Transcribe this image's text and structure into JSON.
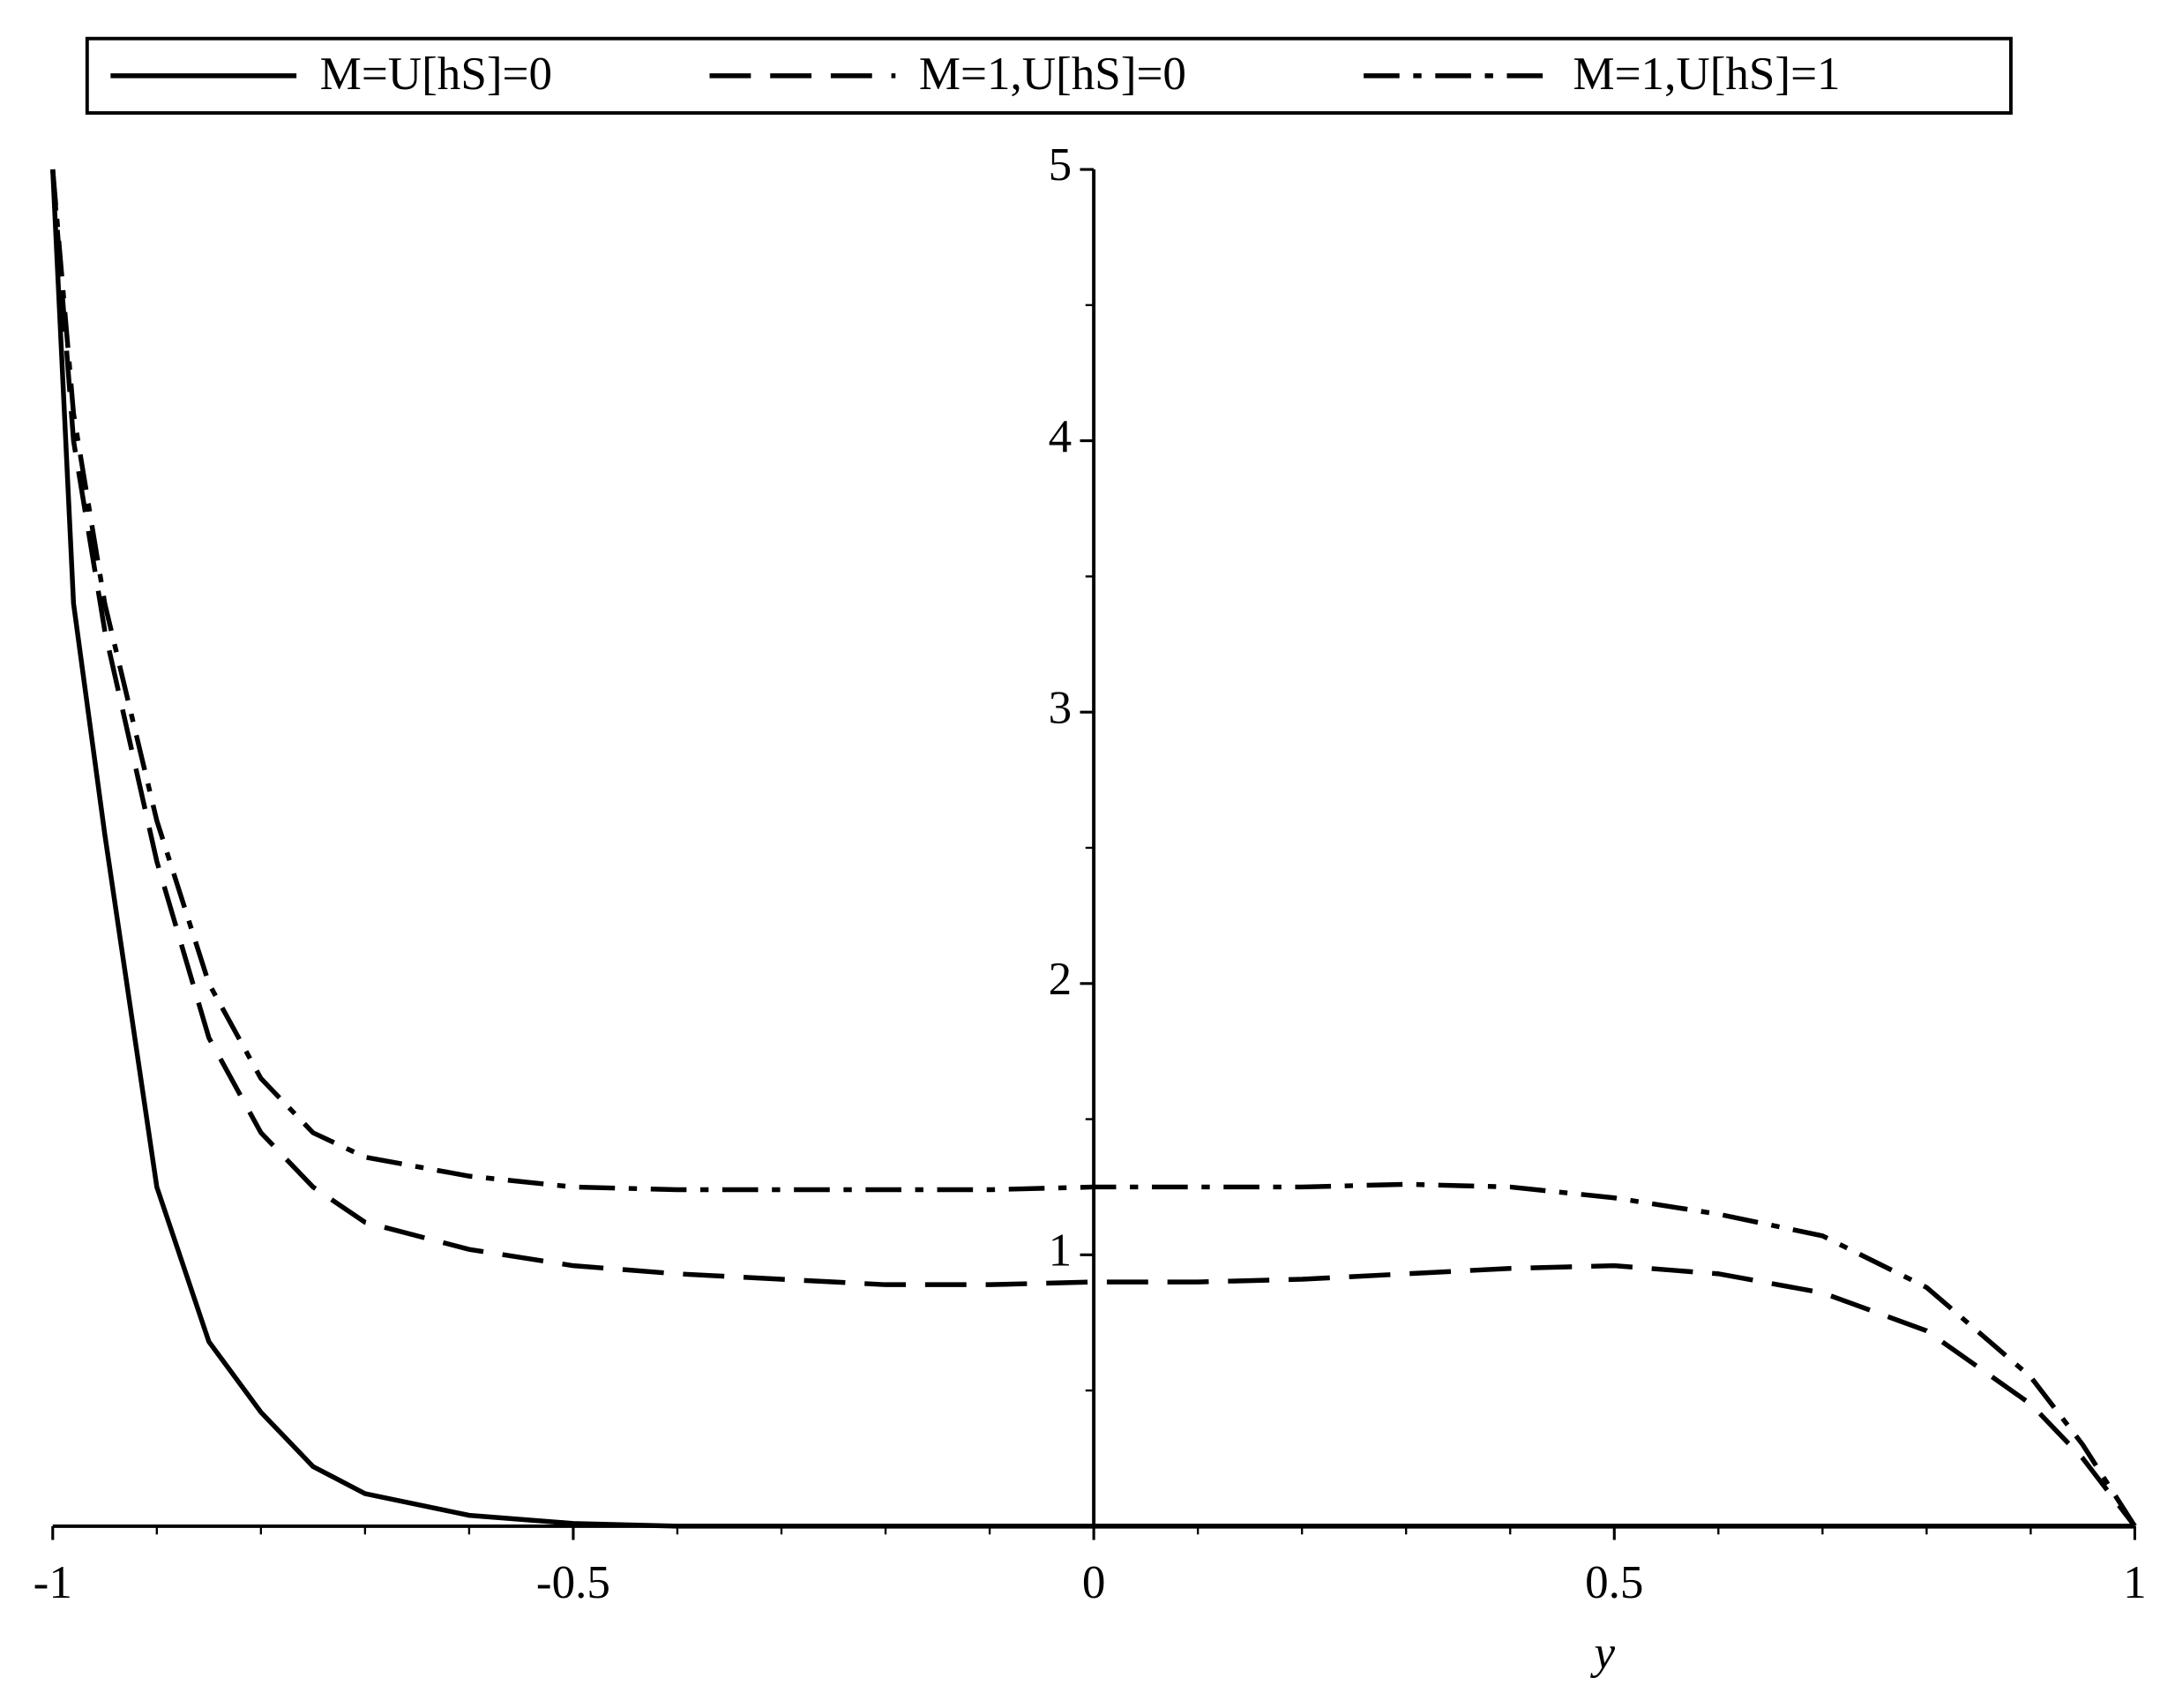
{
  "chart_data": {
    "type": "line",
    "x_label": "y",
    "x": [
      -1,
      -0.98,
      -0.95,
      -0.9,
      -0.85,
      -0.8,
      -0.75,
      -0.7,
      -0.6,
      -0.5,
      -0.4,
      -0.3,
      -0.2,
      -0.1,
      0,
      0.1,
      0.2,
      0.3,
      0.4,
      0.5,
      0.6,
      0.7,
      0.8,
      0.9,
      0.95,
      1
    ],
    "series": [
      {
        "name": "M=U[hS]=0",
        "color": "#000000",
        "dash": "solid",
        "values": [
          5,
          3.4,
          2.55,
          1.25,
          0.68,
          0.42,
          0.22,
          0.12,
          0.04,
          0.01,
          0,
          0,
          0,
          0,
          0,
          0,
          0,
          0,
          0,
          0,
          0,
          0,
          0,
          0,
          0,
          0
        ]
      },
      {
        "name": "M=1,U[hS]=0",
        "color": "#000000",
        "dash": "dash",
        "values": [
          5,
          4.0,
          3.3,
          2.45,
          1.8,
          1.45,
          1.25,
          1.12,
          1.02,
          0.96,
          0.93,
          0.91,
          0.89,
          0.89,
          0.9,
          0.9,
          0.91,
          0.93,
          0.95,
          0.96,
          0.93,
          0.86,
          0.72,
          0.45,
          0.25,
          0
        ]
      },
      {
        "name": "M=1,U[hS]=1",
        "color": "#000000",
        "dash": "dashdot",
        "values": [
          5,
          4.1,
          3.4,
          2.6,
          2.0,
          1.65,
          1.45,
          1.36,
          1.29,
          1.25,
          1.24,
          1.24,
          1.24,
          1.24,
          1.25,
          1.25,
          1.25,
          1.26,
          1.25,
          1.21,
          1.15,
          1.07,
          0.88,
          0.55,
          0.3,
          0
        ]
      }
    ],
    "xlim": [
      -1,
      1
    ],
    "ylim": [
      0,
      5
    ],
    "xticks": [
      -1,
      -0.5,
      0,
      0.5,
      1
    ],
    "yticks": [
      1,
      2,
      3,
      4,
      5
    ],
    "xminor": [
      -0.9,
      -0.8,
      -0.7,
      -0.6,
      -0.4,
      -0.3,
      -0.2,
      -0.1,
      0.1,
      0.2,
      0.3,
      0.4,
      0.6,
      0.7,
      0.8,
      0.9
    ],
    "yminor": [
      0.5,
      1.5,
      2.5,
      3.5,
      4.5
    ],
    "legend": "top"
  }
}
